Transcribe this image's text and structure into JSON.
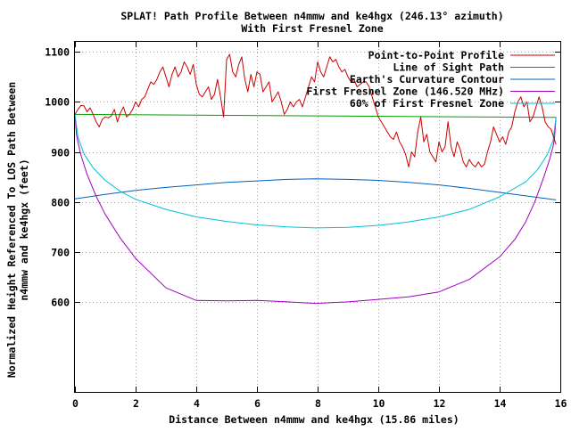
{
  "chart_data": {
    "type": "line",
    "title": "SPLAT! Path Profile Between n4mmw and ke4hgx (246.13° azimuth)",
    "subtitle": "With First Fresnel Zone",
    "xlabel": "Distance Between n4mmw and ke4hgx (15.86 miles)",
    "ylabel_line1": "Normalized Height Referenced To LOS Path Between",
    "ylabel_line2": "n4mmw and ke4hgx (feet)",
    "xlim": [
      0,
      16
    ],
    "ylim": [
      420,
      1120
    ],
    "x_ticks": [
      0,
      2,
      4,
      6,
      8,
      10,
      12,
      14,
      16
    ],
    "y_ticks": [
      600,
      700,
      800,
      900,
      1000,
      1100
    ],
    "grid": true,
    "legend_position": "top-right",
    "path_length": 15.86,
    "series": [
      {
        "name": "Point-to-Point Profile",
        "color": "#cc0000",
        "x": [
          0,
          0.1,
          0.2,
          0.3,
          0.4,
          0.5,
          0.6,
          0.7,
          0.8,
          0.9,
          1.0,
          1.1,
          1.2,
          1.3,
          1.4,
          1.5,
          1.6,
          1.7,
          1.8,
          1.9,
          2.0,
          2.1,
          2.2,
          2.3,
          2.4,
          2.5,
          2.6,
          2.7,
          2.8,
          2.9,
          3.0,
          3.1,
          3.2,
          3.3,
          3.4,
          3.5,
          3.6,
          3.7,
          3.8,
          3.9,
          4.0,
          4.1,
          4.2,
          4.3,
          4.4,
          4.5,
          4.6,
          4.7,
          4.8,
          4.9,
          5.0,
          5.1,
          5.2,
          5.3,
          5.4,
          5.5,
          5.6,
          5.7,
          5.8,
          5.9,
          6.0,
          6.1,
          6.2,
          6.3,
          6.4,
          6.5,
          6.6,
          6.7,
          6.8,
          6.9,
          7.0,
          7.1,
          7.2,
          7.3,
          7.4,
          7.5,
          7.6,
          7.7,
          7.8,
          7.9,
          8.0,
          8.1,
          8.2,
          8.3,
          8.4,
          8.5,
          8.6,
          8.7,
          8.8,
          8.9,
          9.0,
          9.1,
          9.2,
          9.3,
          9.4,
          9.5,
          9.6,
          9.7,
          9.8,
          9.9,
          10.0,
          10.1,
          10.2,
          10.3,
          10.4,
          10.5,
          10.6,
          10.7,
          10.8,
          10.9,
          11.0,
          11.1,
          11.2,
          11.3,
          11.4,
          11.5,
          11.6,
          11.7,
          11.8,
          11.9,
          12.0,
          12.1,
          12.2,
          12.3,
          12.4,
          12.5,
          12.6,
          12.7,
          12.8,
          12.9,
          13.0,
          13.1,
          13.2,
          13.3,
          13.4,
          13.5,
          13.6,
          13.7,
          13.8,
          13.9,
          14.0,
          14.1,
          14.2,
          14.3,
          14.4,
          14.5,
          14.6,
          14.7,
          14.8,
          14.9,
          15.0,
          15.1,
          15.2,
          15.3,
          15.4,
          15.5,
          15.6,
          15.7,
          15.86
        ],
        "y": [
          975,
          985,
          993,
          992,
          980,
          988,
          975,
          960,
          950,
          965,
          970,
          968,
          972,
          985,
          960,
          978,
          990,
          970,
          975,
          985,
          1000,
          990,
          1005,
          1010,
          1025,
          1040,
          1035,
          1045,
          1060,
          1070,
          1050,
          1030,
          1055,
          1070,
          1050,
          1060,
          1080,
          1070,
          1055,
          1075,
          1035,
          1015,
          1010,
          1020,
          1030,
          1005,
          1015,
          1045,
          1010,
          970,
          1085,
          1095,
          1060,
          1050,
          1075,
          1090,
          1045,
          1020,
          1055,
          1030,
          1060,
          1055,
          1020,
          1030,
          1040,
          1000,
          1010,
          1020,
          1000,
          975,
          985,
          1000,
          990,
          1000,
          1005,
          990,
          1010,
          1030,
          1050,
          1040,
          1080,
          1060,
          1050,
          1070,
          1090,
          1080,
          1085,
          1070,
          1060,
          1065,
          1050,
          1040,
          1045,
          1030,
          1035,
          1040,
          1040,
          1030,
          1010,
          990,
          970,
          960,
          950,
          940,
          930,
          925,
          940,
          920,
          910,
          895,
          870,
          900,
          890,
          940,
          970,
          920,
          935,
          900,
          890,
          880,
          920,
          900,
          910,
          960,
          910,
          890,
          920,
          905,
          880,
          870,
          885,
          875,
          870,
          880,
          870,
          875,
          900,
          920,
          950,
          935,
          920,
          930,
          915,
          940,
          950,
          980,
          1000,
          1010,
          990,
          1000,
          960,
          970,
          990,
          1010,
          990,
          960,
          950,
          945,
          915
        ]
      },
      {
        "name": "Line of Sight Path",
        "color": "#00a000",
        "x": [
          0,
          15.86
        ],
        "y": [
          975,
          969
        ]
      },
      {
        "name": "Earth's Curvature Contour",
        "color": "#0060c0",
        "x": [
          0,
          1,
          2,
          3,
          4,
          5,
          6,
          7,
          7.93,
          9,
          10,
          11,
          12,
          13,
          14,
          15,
          15.86
        ],
        "y": [
          806,
          815,
          823,
          829,
          834,
          839,
          842,
          845,
          846,
          845,
          843,
          839,
          834,
          827,
          819,
          811,
          804
        ]
      },
      {
        "name": "First Fresnel Zone (146.520 MHz)",
        "color": "#a000c0",
        "x": [
          0,
          0.05,
          0.1,
          0.2,
          0.4,
          0.7,
          1.0,
          1.5,
          2.0,
          3.0,
          4.0,
          5.0,
          6.0,
          7.0,
          7.93,
          9.0,
          10.0,
          11.0,
          12.0,
          13.0,
          14.0,
          14.5,
          14.86,
          15.16,
          15.46,
          15.66,
          15.76,
          15.81,
          15.86
        ],
        "y": [
          975,
          935,
          919,
          893,
          855,
          811,
          775,
          727,
          687,
          628,
          603,
          602,
          603,
          600,
          597,
          600,
          605,
          610,
          620,
          645,
          690,
          725,
          760,
          800,
          850,
          887,
          910,
          928,
          969
        ]
      },
      {
        "name": "60% of First Fresnel Zone",
        "color": "#00c0d0",
        "x": [
          0,
          0.1,
          0.3,
          0.6,
          1.0,
          1.5,
          2.0,
          3.0,
          4.0,
          5.0,
          6.0,
          7.0,
          7.93,
          9.0,
          10.0,
          11.0,
          12.0,
          13.0,
          14.0,
          14.86,
          15.26,
          15.56,
          15.76,
          15.86
        ],
        "y": [
          975,
          929,
          896,
          868,
          843,
          821,
          805,
          785,
          770,
          761,
          754,
          750,
          748,
          749,
          753,
          760,
          770,
          785,
          810,
          840,
          865,
          893,
          922,
          969
        ]
      }
    ]
  }
}
